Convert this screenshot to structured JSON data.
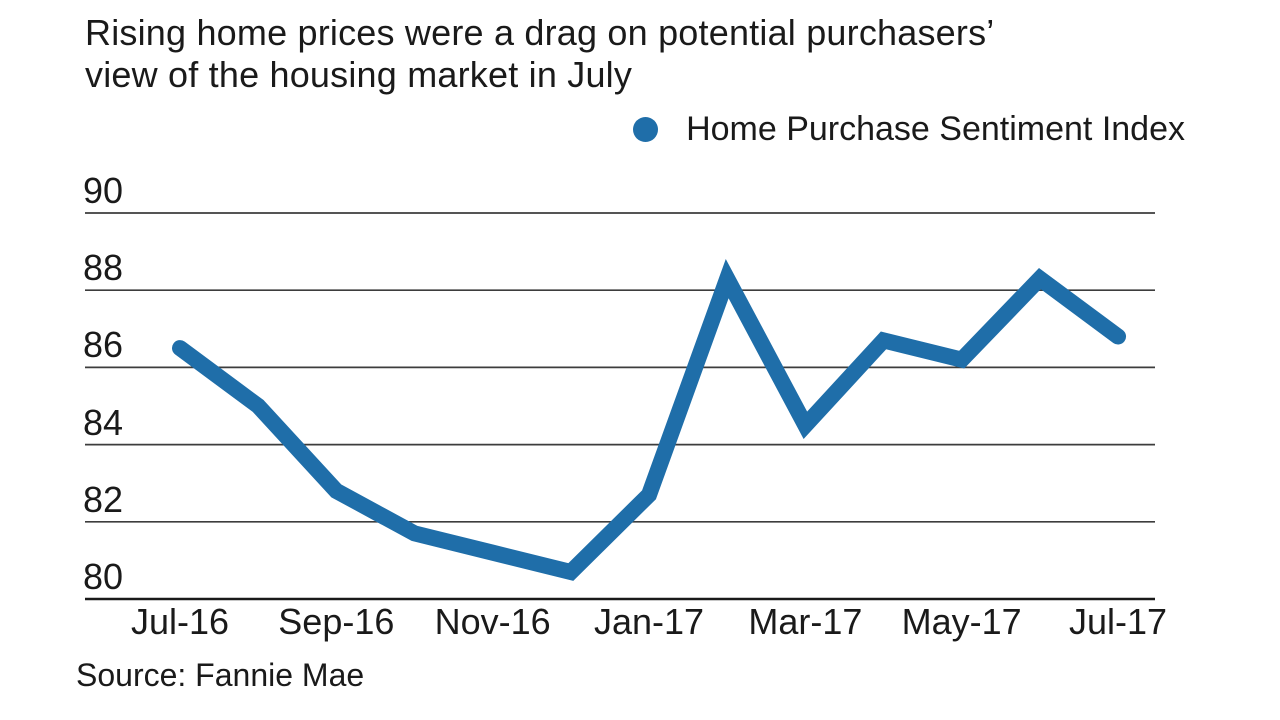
{
  "header": {
    "title_line1": "Rising home prices were a drag on potential purchasers’",
    "title_line2": "view of the housing market in July"
  },
  "legend": {
    "label": "Home Purchase Sentiment Index",
    "marker_color": "#1f6ea9"
  },
  "source": {
    "text": "Source: Fannie Mae"
  },
  "colors": {
    "accent_blue": "#1f6ea9",
    "grid": "#3d3d3d",
    "axis": "#1a1a1a",
    "text": "#1a1a1a",
    "background": "#ffffff"
  },
  "chart_data": {
    "type": "line",
    "title": "Rising home prices were a drag on potential purchasers’ view of the housing market in July",
    "legend": [
      "Home Purchase Sentiment Index"
    ],
    "legend_position": "top-right",
    "categories": [
      "Jul-16",
      "Aug-16",
      "Sep-16",
      "Oct-16",
      "Nov-16",
      "Dec-16",
      "Jan-17",
      "Feb-17",
      "Mar-17",
      "Apr-17",
      "May-17",
      "Jun-17",
      "Jul-17"
    ],
    "series": [
      {
        "name": "Home Purchase Sentiment Index",
        "values": [
          86.5,
          85.0,
          82.8,
          81.7,
          81.2,
          80.7,
          82.7,
          88.3,
          84.5,
          86.7,
          86.2,
          88.3,
          86.8
        ]
      }
    ],
    "x_tick_labels": [
      "Jul-16",
      "Sep-16",
      "Nov-16",
      "Jan-17",
      "Mar-17",
      "May-17",
      "Jul-17"
    ],
    "y_ticks": [
      90,
      88,
      86,
      84,
      82,
      80
    ],
    "ylim": [
      80,
      90
    ],
    "xlabel": "",
    "ylabel": "",
    "grid": true,
    "line_color": "#1f6ea9",
    "source": "Source: Fannie Mae"
  }
}
